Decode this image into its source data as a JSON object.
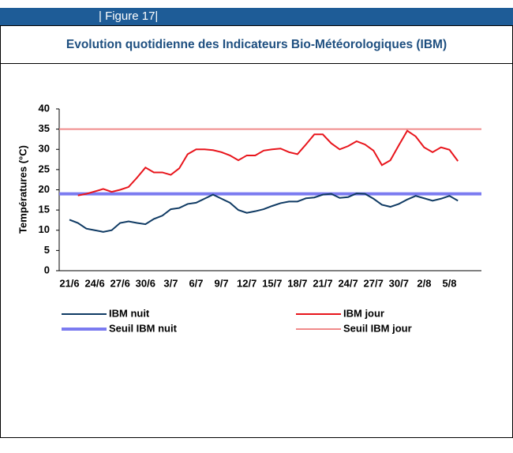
{
  "header": {
    "figure": "| Figure 17|"
  },
  "chart_data": {
    "type": "line",
    "title": "Evolution quotidienne des Indicateurs Bio-Météorologiques (IBM)",
    "ylabel": "Températures  (°C)",
    "categories": [
      "21/6",
      null,
      null,
      "24/6",
      null,
      null,
      "27/6",
      null,
      null,
      "30/6",
      null,
      null,
      "3/7",
      null,
      null,
      "6/7",
      null,
      null,
      "9/7",
      null,
      null,
      "12/7",
      null,
      null,
      "15/7",
      null,
      null,
      "18/7",
      null,
      null,
      "21/7",
      null,
      null,
      "24/7",
      null,
      null,
      "27/7",
      null,
      null,
      "30/7",
      null,
      null,
      "2/8",
      null,
      null,
      "5/8",
      null
    ],
    "ylim": [
      0,
      40
    ],
    "yticks": [
      0,
      5,
      10,
      15,
      20,
      25,
      30,
      35,
      40
    ],
    "series": [
      {
        "name": "IBM nuit",
        "color": "#0f3a63",
        "values": [
          12.6,
          11.8,
          10.4,
          10.0,
          9.6,
          10.0,
          11.8,
          12.2,
          11.8,
          11.5,
          12.8,
          13.6,
          15.2,
          15.5,
          16.5,
          16.8,
          17.8,
          18.8,
          17.8,
          16.8,
          15.0,
          14.3,
          14.7,
          15.2,
          16.0,
          16.7,
          17.1,
          17.1,
          17.9,
          18.1,
          18.8,
          19.0,
          18.0,
          18.2,
          19.1,
          19.0,
          17.8,
          16.3,
          15.8,
          16.5,
          17.6,
          18.5,
          17.9,
          17.3,
          17.8,
          18.5,
          17.3
        ]
      },
      {
        "name": "IBM jour",
        "color": "#e8141b",
        "values": [
          null,
          18.6,
          19.0,
          19.6,
          20.2,
          19.5,
          20.0,
          20.7,
          23.0,
          25.5,
          24.3,
          24.3,
          23.7,
          25.3,
          28.8,
          30.0,
          30.0,
          29.8,
          29.3,
          28.5,
          27.3,
          28.5,
          28.5,
          29.7,
          30.0,
          30.2,
          29.3,
          28.8,
          31.2,
          33.7,
          33.7,
          31.5,
          30.0,
          30.8,
          32.0,
          31.2,
          29.7,
          26.1,
          27.3,
          31.0,
          34.6,
          33.2,
          30.5,
          29.3,
          30.5,
          29.9,
          27.1
        ]
      }
    ],
    "thresholds": [
      {
        "name": "Seuil IBM nuit",
        "color": "#7b7bf0",
        "value": 19
      },
      {
        "name": "Seuil IBM jour",
        "color": "#f08a8a",
        "value": 35
      }
    ]
  }
}
